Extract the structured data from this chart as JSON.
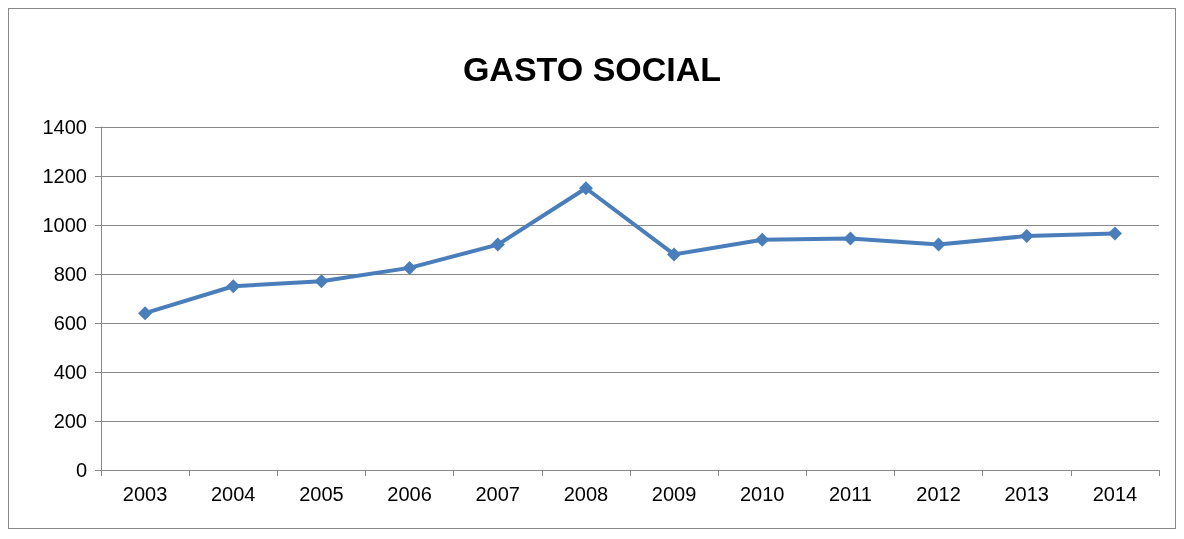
{
  "chart_data": {
    "type": "line",
    "title": "GASTO SOCIAL",
    "categories": [
      "2003",
      "2004",
      "2005",
      "2006",
      "2007",
      "2008",
      "2009",
      "2010",
      "2011",
      "2012",
      "2013",
      "2014"
    ],
    "series": [
      {
        "color": "#4a7ebb",
        "values": [
          640,
          750,
          770,
          825,
          920,
          1150,
          880,
          940,
          945,
          920,
          955,
          965
        ]
      }
    ],
    "ylim": [
      0,
      1400
    ],
    "yticks": [
      0,
      200,
      400,
      600,
      800,
      1000,
      1200,
      1400
    ],
    "grid": "y",
    "marker": "diamond",
    "line_style": "solid"
  }
}
